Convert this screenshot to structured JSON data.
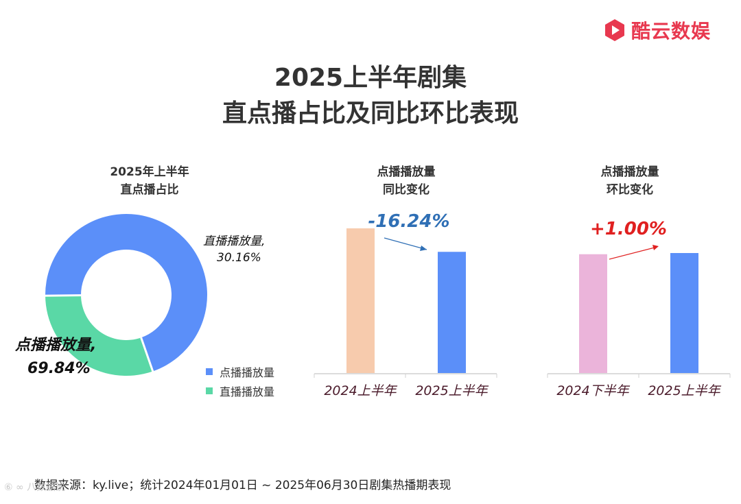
{
  "brand": {
    "name": "酷云数娱",
    "color": "#e8384f"
  },
  "title": {
    "line1": "2025上半年剧集",
    "line2": "直点播占比及同比环比表现"
  },
  "chart_data": [
    {
      "type": "pie",
      "title_line1": "2025年上半年",
      "title_line2": "直点播占比",
      "slices": [
        {
          "name": "点播播放量",
          "value": 69.84,
          "color": "#5b8ff9",
          "label_line1": "点播播放量,",
          "label_line2": "69.84%"
        },
        {
          "name": "直播播放量",
          "value": 30.16,
          "color": "#5ad8a6",
          "label_line1": "直播播放量,",
          "label_line2": "30.16%"
        }
      ],
      "legend": [
        "点播播放量",
        "直播播放量"
      ],
      "legend_position": "bottom-right"
    },
    {
      "type": "bar",
      "title_line1": "点播播放量",
      "title_line2": "同比变化",
      "categories": [
        "2024上半年",
        "2025上半年"
      ],
      "values": [
        100,
        83.76
      ],
      "colors": [
        "#f7cbad",
        "#5b8ff9"
      ],
      "change": "-16.24%",
      "change_color": "#2f6fb5"
    },
    {
      "type": "bar",
      "title_line1": "点播播放量",
      "title_line2": "环比变化",
      "categories": [
        "2024下半年",
        "2025上半年"
      ],
      "values": [
        100,
        101.0
      ],
      "colors": [
        "#ebb4da",
        "#5b8ff9"
      ],
      "change": "+1.00%",
      "change_color": "#e02020"
    }
  ],
  "footer": "数据来源：ky.live；统计2024年01月01日 ~ 2025年06月30日剧集热播期表现",
  "watermark": "⑥ ∞ 八数据说"
}
